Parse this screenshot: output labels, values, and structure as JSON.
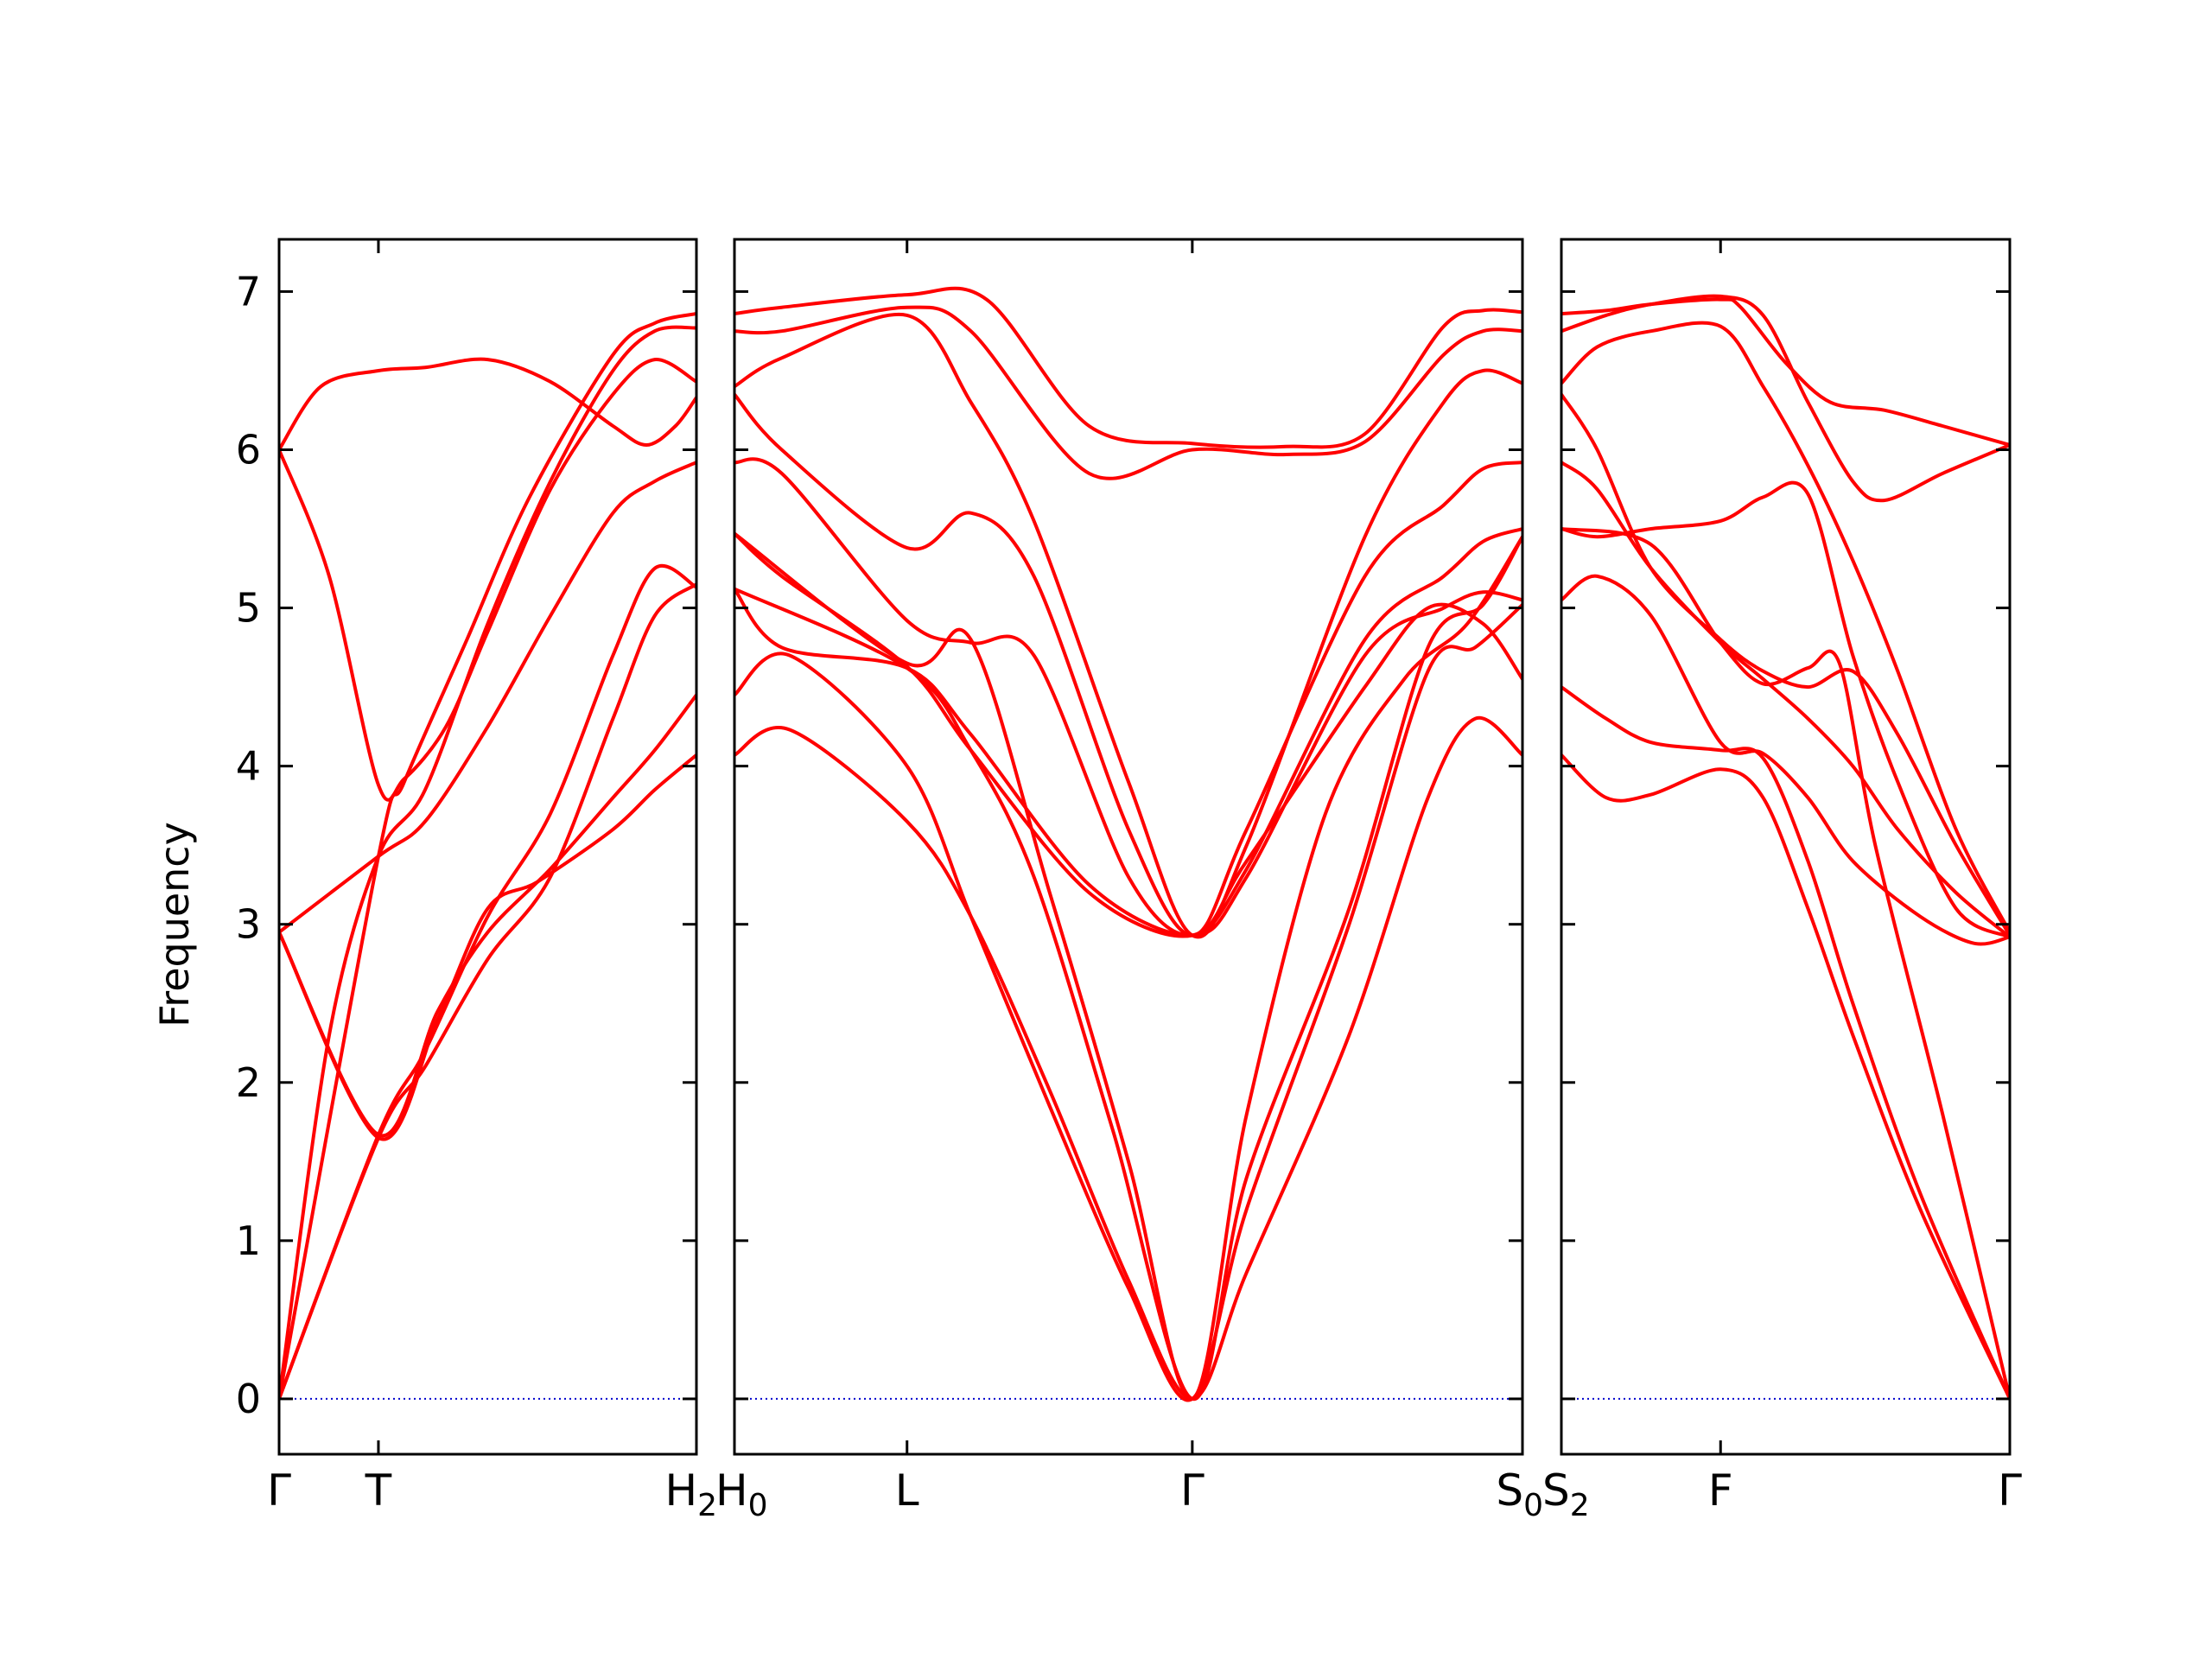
{
  "chart_data": {
    "type": "line",
    "title": "",
    "ylabel": "Frequency",
    "xlabel": "",
    "ylim": [
      -0.35,
      7.33
    ],
    "yticks": [
      0,
      1,
      2,
      3,
      4,
      5,
      6,
      7
    ],
    "ytick_labels": [
      "0",
      "1",
      "2",
      "3",
      "4",
      "5",
      "6",
      "7"
    ],
    "grid": false,
    "line_color": "#ff0000",
    "zero_line_color": "#0000cc",
    "panels": [
      {
        "xlim": [
          0,
          1
        ],
        "ticks": [
          {
            "x": 0,
            "label": "Γ",
            "sub": ""
          },
          {
            "x": 0.238,
            "label": "T",
            "sub": ""
          },
          {
            "x": 1,
            "label": "H",
            "sub": "2"
          }
        ],
        "bands": [
          {
            "x": [
              0,
              0.238,
              0.35,
              0.5,
              0.65,
              0.8,
              0.9,
              1
            ],
            "y": [
              0,
              1.65,
              2.1,
              2.78,
              3.3,
              4.3,
              4.95,
              5.15
            ]
          },
          {
            "x": [
              0,
              0.238,
              0.35,
              0.5,
              0.65,
              0.8,
              0.9,
              1
            ],
            "y": [
              0,
              1.67,
              2.2,
              3.05,
              3.7,
              4.7,
              5.25,
              5.13
            ]
          },
          {
            "x": [
              0,
              0.238,
              0.38,
              0.5,
              0.65,
              0.8,
              0.9,
              1
            ],
            "y": [
              2.95,
              1.67,
              2.45,
              2.95,
              3.35,
              3.8,
              4.1,
              4.45
            ]
          },
          {
            "x": [
              0,
              0.238,
              0.38,
              0.5,
              0.62,
              0.8,
              0.9,
              1
            ],
            "y": [
              2.95,
              1.65,
              2.4,
              3.1,
              3.27,
              3.6,
              3.85,
              4.07
            ]
          },
          {
            "x": [
              0,
              0.12,
              0.238,
              0.35,
              0.5,
              0.65,
              0.8,
              0.9,
              1
            ],
            "y": [
              0,
              2.3,
              3.43,
              3.85,
              4.9,
              5.8,
              6.5,
              6.75,
              6.77
            ]
          },
          {
            "x": [
              0,
              0.238,
              0.35,
              0.5,
              0.65,
              0.8,
              0.9,
              1
            ],
            "y": [
              2.95,
              3.43,
              3.65,
              4.25,
              4.95,
              5.6,
              5.8,
              5.92
            ]
          },
          {
            "x": [
              0,
              0.12,
              0.238,
              0.3,
              0.4,
              0.5,
              0.65,
              0.8,
              0.9,
              1
            ],
            "y": [
              6.0,
              5.2,
              3.88,
              3.92,
              4.25,
              4.85,
              5.75,
              6.35,
              6.57,
              6.43
            ]
          },
          {
            "x": [
              0,
              0.238,
              0.3,
              0.45,
              0.6,
              0.8,
              0.9,
              1
            ],
            "y": [
              0,
              3.43,
              3.9,
              4.8,
              5.7,
              6.6,
              6.8,
              6.86
            ]
          },
          {
            "x": [
              0,
              0.1,
              0.238,
              0.35,
              0.5,
              0.65,
              0.8,
              0.88,
              0.95,
              1
            ],
            "y": [
              6.0,
              6.4,
              6.5,
              6.52,
              6.57,
              6.43,
              6.15,
              6.03,
              6.15,
              6.33
            ]
          }
        ]
      },
      {
        "xlim": [
          0,
          1
        ],
        "ticks": [
          {
            "x": 0,
            "label": "H",
            "sub": "0"
          },
          {
            "x": 0.219,
            "label": "L",
            "sub": ""
          },
          {
            "x": 0.581,
            "label": "Γ",
            "sub": ""
          },
          {
            "x": 1,
            "label": "S",
            "sub": "0"
          }
        ],
        "bands": [
          {
            "x": [
              0,
              0.06,
              0.219,
              0.32,
              0.45,
              0.581,
              0.7,
              0.8,
              0.9,
              0.95,
              1
            ],
            "y": [
              6.86,
              6.9,
              6.98,
              6.95,
              6.15,
              6.04,
              6.02,
              6.1,
              6.78,
              6.88,
              6.87
            ]
          },
          {
            "x": [
              0,
              0.06,
              0.219,
              0.3,
              0.45,
              0.581,
              0.7,
              0.8,
              0.9,
              0.95,
              1
            ],
            "y": [
              6.75,
              6.75,
              6.9,
              6.75,
              5.85,
              6.0,
              5.97,
              6.05,
              6.6,
              6.75,
              6.75
            ]
          },
          {
            "x": [
              0,
              0.06,
              0.219,
              0.3,
              0.38,
              0.5,
              0.581,
              0.65,
              0.8,
              0.9,
              0.95,
              1
            ],
            "y": [
              6.4,
              6.58,
              6.85,
              6.3,
              5.55,
              3.9,
              2.93,
              3.5,
              5.45,
              6.3,
              6.5,
              6.42
            ]
          },
          {
            "x": [
              0,
              0.06,
              0.219,
              0.3,
              0.38,
              0.5,
              0.581,
              0.65,
              0.8,
              0.9,
              0.95,
              1
            ],
            "y": [
              6.35,
              6.0,
              5.38,
              5.6,
              5.2,
              3.6,
              2.93,
              3.6,
              5.2,
              5.65,
              5.88,
              5.92
            ]
          },
          {
            "x": [
              0,
              0.06,
              0.219,
              0.3,
              0.38,
              0.5,
              0.581,
              0.65,
              0.8,
              0.9,
              0.95,
              1
            ],
            "y": [
              5.92,
              5.85,
              4.92,
              4.78,
              4.7,
              3.3,
              2.93,
              3.35,
              4.8,
              5.2,
              5.42,
              5.5
            ]
          },
          {
            "x": [
              0,
              0.06,
              0.219,
              0.3,
              0.45,
              0.581,
              0.65,
              0.8,
              0.88,
              0.95,
              1
            ],
            "y": [
              5.47,
              5.2,
              4.63,
              4.1,
              3.2,
              2.93,
              3.4,
              4.5,
              5.0,
              4.9,
              4.55
            ]
          },
          {
            "x": [
              0,
              0.06,
              0.219,
              0.3,
              0.45,
              0.581,
              0.65,
              0.8,
              0.9,
              0.95,
              1
            ],
            "y": [
              5.12,
              4.75,
              4.62,
              4.2,
              3.25,
              2.93,
              3.3,
              4.7,
              5.0,
              5.1,
              5.05
            ]
          },
          {
            "x": [
              0,
              0.07,
              0.219,
              0.3,
              0.4,
              0.5,
              0.581,
              0.65,
              0.78,
              0.88,
              0.94,
              1
            ],
            "y": [
              4.45,
              4.7,
              4.0,
              3.05,
              1.85,
              0.7,
              0,
              1.2,
              3.0,
              4.6,
              4.75,
              5.02
            ]
          },
          {
            "x": [
              0,
              0.07,
              0.219,
              0.3,
              0.4,
              0.5,
              0.581,
              0.65,
              0.78,
              0.88,
              0.94,
              1
            ],
            "y": [
              4.07,
              4.23,
              3.65,
              3.05,
              1.95,
              0.75,
              0,
              0.8,
              2.3,
              3.8,
              4.3,
              4.07
            ]
          },
          {
            "x": [
              0,
              0.219,
              0.3,
              0.4,
              0.5,
              0.581,
              0.65,
              0.75,
              0.85,
              0.93,
              1
            ],
            "y": [
              5.47,
              4.65,
              4.8,
              3.2,
              1.5,
              0,
              1.8,
              3.7,
              4.55,
              4.9,
              5.45
            ]
          },
          {
            "x": [
              0,
              0.219,
              0.3,
              0.38,
              0.48,
              0.581,
              0.65,
              0.78,
              0.88,
              0.95,
              1
            ],
            "y": [
              5.12,
              4.62,
              4.1,
              3.3,
              1.7,
              0,
              1.4,
              3.1,
              4.75,
              5.02,
              5.45
            ]
          }
        ]
      },
      {
        "xlim": [
          0,
          1
        ],
        "ticks": [
          {
            "x": 0,
            "label": "S",
            "sub": "2"
          },
          {
            "x": 0.355,
            "label": "F",
            "sub": ""
          },
          {
            "x": 1,
            "label": "Γ",
            "sub": ""
          }
        ],
        "bands": [
          {
            "x": [
              0,
              0.1,
              0.2,
              0.355,
              0.4,
              0.5,
              0.6,
              0.72,
              0.85,
              1
            ],
            "y": [
              6.86,
              6.88,
              6.92,
              6.95,
              6.9,
              6.55,
              6.3,
              6.25,
              6.15,
              6.03
            ]
          },
          {
            "x": [
              0,
              0.1,
              0.2,
              0.355,
              0.45,
              0.55,
              0.65,
              0.72,
              0.85,
              1
            ],
            "y": [
              6.75,
              6.85,
              6.92,
              6.97,
              6.85,
              6.3,
              5.8,
              5.68,
              5.85,
              6.03
            ]
          },
          {
            "x": [
              0,
              0.08,
              0.2,
              0.355,
              0.45,
              0.55,
              0.65,
              0.75,
              0.88,
              1
            ],
            "y": [
              6.42,
              6.65,
              6.75,
              6.78,
              6.4,
              5.9,
              5.3,
              4.6,
              3.6,
              2.95
            ]
          },
          {
            "x": [
              0,
              0.08,
              0.2,
              0.355,
              0.45,
              0.55,
              0.65,
              0.75,
              0.88,
              1
            ],
            "y": [
              6.35,
              6.0,
              5.25,
              4.8,
              4.6,
              4.5,
              4.6,
              4.2,
              3.5,
              2.93
            ]
          },
          {
            "x": [
              0,
              0.08,
              0.2,
              0.355,
              0.45,
              0.55,
              0.65,
              0.75,
              0.88,
              1
            ],
            "y": [
              5.92,
              5.75,
              5.25,
              4.78,
              4.55,
              4.3,
              4.0,
              3.6,
              3.2,
              2.92
            ]
          },
          {
            "x": [
              0,
              0.08,
              0.2,
              0.355,
              0.45,
              0.55,
              0.65,
              0.75,
              0.88,
              1
            ],
            "y": [
              5.5,
              5.45,
              5.5,
              5.55,
              5.7,
              5.72,
              4.7,
              3.9,
              3.1,
              2.92
            ]
          },
          {
            "x": [
              0,
              0.08,
              0.2,
              0.355,
              0.45,
              0.55,
              0.65,
              0.8,
              0.92,
              1
            ],
            "y": [
              5.05,
              5.2,
              4.95,
              4.15,
              4.08,
              3.8,
              3.4,
              3.05,
              2.88,
              2.92
            ]
          },
          {
            "x": [
              0,
              0.1,
              0.2,
              0.355,
              0.45,
              0.55,
              0.65,
              0.8,
              1
            ],
            "y": [
              4.5,
              4.3,
              4.15,
              4.1,
              4.05,
              3.4,
              2.5,
              1.3,
              0
            ]
          },
          {
            "x": [
              0,
              0.1,
              0.2,
              0.355,
              0.45,
              0.55,
              0.65,
              0.8,
              1
            ],
            "y": [
              4.07,
              3.8,
              3.82,
              3.98,
              3.8,
              3.1,
              2.3,
              1.2,
              0
            ]
          },
          {
            "x": [
              0,
              0.2,
              0.355,
              0.45,
              0.55,
              0.62,
              0.7,
              0.85,
              1
            ],
            "y": [
              5.5,
              5.4,
              4.78,
              4.52,
              4.62,
              4.65,
              3.5,
              1.8,
              0
            ]
          }
        ]
      }
    ]
  }
}
